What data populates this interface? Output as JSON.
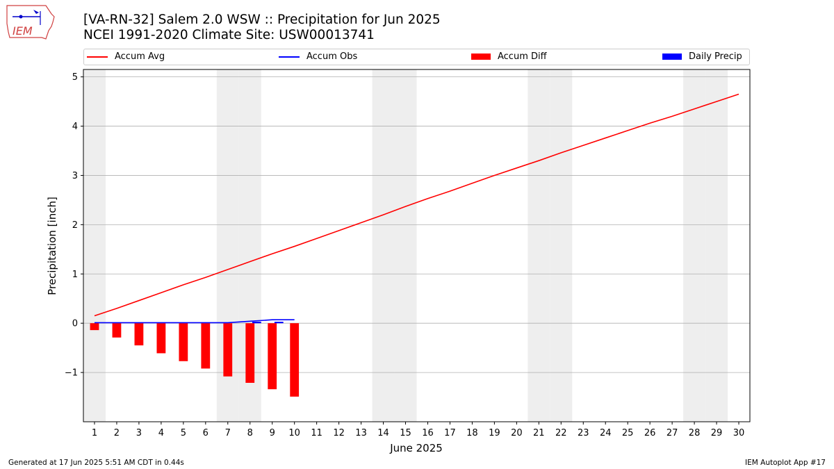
{
  "header": {
    "title_line1": "[VA-RN-32] Salem 2.0 WSW :: Precipitation for Jun 2025",
    "title_line2": "NCEI 1991-2020 Climate Site: USW00013741",
    "logo_text": "IEM"
  },
  "footer": {
    "generated": "Generated at 17 Jun 2025 5:51 AM CDT in 0.44s",
    "app": "IEM Autoplot App #17"
  },
  "colors": {
    "accum_avg": "#ff0000",
    "accum_obs": "#0000ff",
    "accum_diff": "#ff0000",
    "daily_precip": "#0000ff",
    "weekend_shade": "#eeeeee",
    "grid": "#b0b0b0"
  },
  "chart_data": {
    "type": "bar",
    "title": "[VA-RN-32] Salem 2.0 WSW :: Precipitation for Jun 2025",
    "subtitle": "NCEI 1991-2020 Climate Site: USW00013741",
    "xlabel": "June 2025",
    "ylabel": "Precipitation [inch]",
    "x": [
      1,
      2,
      3,
      4,
      5,
      6,
      7,
      8,
      9,
      10,
      11,
      12,
      13,
      14,
      15,
      16,
      17,
      18,
      19,
      20,
      21,
      22,
      23,
      24,
      25,
      26,
      27,
      28,
      29,
      30
    ],
    "xlim": [
      0.5,
      30.5
    ],
    "ylim": [
      -2.0,
      5.15
    ],
    "yticks": [
      -1,
      0,
      1,
      2,
      3,
      4,
      5
    ],
    "ytick_labels": [
      "−1",
      "0",
      "1",
      "2",
      "3",
      "4",
      "5"
    ],
    "grid": "y",
    "legend_placement": "top",
    "shaded_days": [
      1,
      7,
      8,
      14,
      15,
      21,
      22,
      28,
      29
    ],
    "series": [
      {
        "name": "Accum Avg",
        "kind": "line",
        "x": [
          1,
          2,
          3,
          4,
          5,
          6,
          7,
          8,
          9,
          10,
          11,
          12,
          13,
          14,
          15,
          16,
          17,
          18,
          19,
          20,
          21,
          22,
          23,
          24,
          25,
          26,
          27,
          28,
          29,
          30
        ],
        "values": [
          0.15,
          0.3,
          0.46,
          0.62,
          0.78,
          0.93,
          1.09,
          1.25,
          1.41,
          1.56,
          1.72,
          1.88,
          2.04,
          2.2,
          2.37,
          2.53,
          2.68,
          2.84,
          3.0,
          3.15,
          3.3,
          3.46,
          3.61,
          3.76,
          3.91,
          4.06,
          4.2,
          4.35,
          4.5,
          4.65
        ]
      },
      {
        "name": "Accum Obs",
        "kind": "line",
        "x": [
          1,
          2,
          3,
          4,
          5,
          6,
          7,
          8,
          9,
          10
        ],
        "values": [
          0.01,
          0.01,
          0.01,
          0.01,
          0.01,
          0.01,
          0.01,
          0.04,
          0.07,
          0.07
        ]
      },
      {
        "name": "Accum Diff",
        "kind": "bar",
        "x": [
          1,
          2,
          3,
          4,
          5,
          6,
          7,
          8,
          9,
          10
        ],
        "values": [
          -0.14,
          -0.29,
          -0.45,
          -0.61,
          -0.77,
          -0.92,
          -1.08,
          -1.21,
          -1.34,
          -1.49
        ]
      },
      {
        "name": "Daily Precip",
        "kind": "bar",
        "x": [
          8,
          9
        ],
        "values": [
          0.03,
          0.03
        ]
      }
    ]
  }
}
